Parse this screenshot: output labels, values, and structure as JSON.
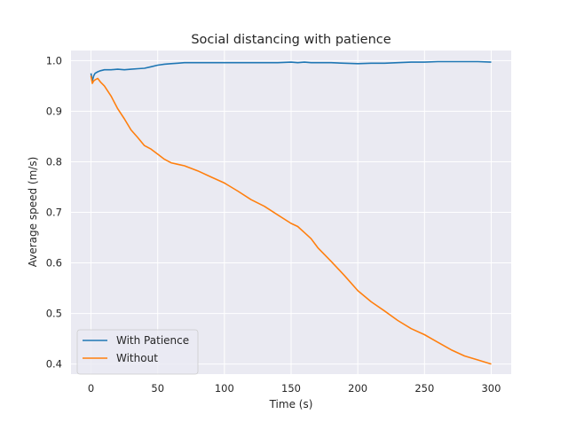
{
  "chart_data": {
    "type": "line",
    "title": "Social distancing with patience",
    "xlabel": "Time (s)",
    "ylabel": "Average speed (m/s)",
    "xlim": [
      -15,
      315
    ],
    "ylim": [
      0.38,
      1.02
    ],
    "xticks": [
      0,
      50,
      100,
      150,
      200,
      250,
      300
    ],
    "yticks": [
      0.4,
      0.5,
      0.6,
      0.7,
      0.8,
      0.9,
      1.0
    ],
    "xtick_labels": [
      "0",
      "50",
      "100",
      "150",
      "200",
      "250",
      "300"
    ],
    "ytick_labels": [
      "0.4",
      "0.5",
      "0.6",
      "0.7",
      "0.8",
      "0.9",
      "1.0"
    ],
    "grid": true,
    "legend_position": "lower-left",
    "x": [
      0,
      1,
      2,
      3,
      5,
      7,
      10,
      15,
      20,
      25,
      30,
      35,
      40,
      45,
      50,
      55,
      60,
      65,
      70,
      80,
      90,
      100,
      110,
      120,
      130,
      140,
      150,
      155,
      160,
      165,
      170,
      180,
      190,
      200,
      210,
      220,
      230,
      240,
      250,
      260,
      270,
      280,
      290,
      300
    ],
    "series": [
      {
        "name": "With Patience",
        "color": "#1f77b4",
        "values": [
          0.975,
          0.96,
          0.97,
          0.975,
          0.978,
          0.98,
          0.982,
          0.982,
          0.983,
          0.982,
          0.983,
          0.984,
          0.985,
          0.988,
          0.991,
          0.993,
          0.994,
          0.995,
          0.996,
          0.996,
          0.996,
          0.996,
          0.996,
          0.996,
          0.996,
          0.996,
          0.997,
          0.996,
          0.997,
          0.996,
          0.996,
          0.996,
          0.995,
          0.994,
          0.995,
          0.995,
          0.996,
          0.997,
          0.997,
          0.998,
          0.998,
          0.998,
          0.998,
          0.997
        ]
      },
      {
        "name": "Without",
        "color": "#ff7f0e",
        "values": [
          0.97,
          0.955,
          0.96,
          0.962,
          0.965,
          0.958,
          0.95,
          0.93,
          0.905,
          0.885,
          0.863,
          0.848,
          0.832,
          0.825,
          0.815,
          0.805,
          0.798,
          0.795,
          0.792,
          0.782,
          0.77,
          0.758,
          0.742,
          0.725,
          0.712,
          0.695,
          0.678,
          0.672,
          0.66,
          0.648,
          0.63,
          0.603,
          0.575,
          0.545,
          0.523,
          0.505,
          0.486,
          0.47,
          0.458,
          0.443,
          0.428,
          0.416,
          0.408,
          0.4
        ]
      }
    ]
  }
}
